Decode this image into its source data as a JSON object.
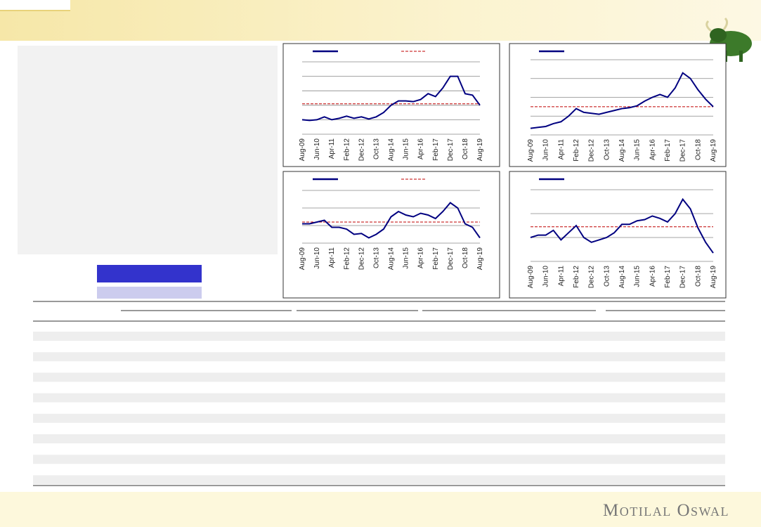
{
  "chart_data": [
    {
      "type": "line",
      "categories": [
        "Aug-09",
        null,
        "Jun-10",
        null,
        "Apr-11",
        null,
        "Feb-12",
        null,
        "Dec-12",
        null,
        "Oct-13",
        null,
        "Aug-14",
        null,
        "Jun-15",
        null,
        "Apr-16",
        null,
        "Feb-17",
        null,
        "Dec-17",
        null,
        "Oct-18",
        null,
        "Aug-19"
      ],
      "series": [
        {
          "color": "#000080",
          "values": [
            1.0,
            0.95,
            1.0,
            1.2,
            1.0,
            1.1,
            1.25,
            1.1,
            1.2,
            1.05,
            1.2,
            1.5,
            2.0,
            2.3,
            2.3,
            2.25,
            2.4,
            2.8,
            2.6,
            3.2,
            4.0,
            4.0,
            2.8,
            2.7,
            2.0
          ]
        }
      ],
      "reference": {
        "value": 2.1,
        "color": "#c00000"
      },
      "reference_in_legend": true,
      "ylim": [
        0,
        5
      ],
      "yticks": [
        1,
        2,
        3,
        4,
        5
      ],
      "grid": true
    },
    {
      "type": "line",
      "categories": [
        "Aug-09",
        null,
        "Jun-10",
        null,
        "Apr-11",
        null,
        "Feb-12",
        null,
        "Dec-12",
        null,
        "Oct-13",
        null,
        "Aug-14",
        null,
        "Jun-15",
        null,
        "Apr-16",
        null,
        "Feb-17",
        null,
        "Dec-17",
        null,
        "Oct-18",
        null,
        "Aug-19"
      ],
      "series": [
        {
          "color": "#000080",
          "values": [
            0.35,
            0.4,
            0.45,
            0.6,
            0.7,
            1.0,
            1.4,
            1.2,
            1.15,
            1.1,
            1.2,
            1.3,
            1.4,
            1.45,
            1.55,
            1.8,
            2.0,
            2.15,
            2.0,
            2.5,
            3.3,
            3.0,
            2.4,
            1.9,
            1.5
          ]
        }
      ],
      "reference": {
        "value": 1.5,
        "color": "#c00000"
      },
      "reference_in_legend": false,
      "ylim": [
        0,
        4
      ],
      "yticks": [
        1,
        2,
        3,
        4
      ],
      "grid": true
    },
    {
      "type": "line",
      "categories": [
        "Aug-09",
        null,
        "Jun-10",
        null,
        "Apr-11",
        null,
        "Feb-12",
        null,
        "Dec-12",
        null,
        "Oct-13",
        null,
        "Aug-14",
        null,
        "Jun-15",
        null,
        "Apr-16",
        null,
        "Feb-17",
        null,
        "Dec-17",
        null,
        "Oct-18",
        null,
        "Aug-19"
      ],
      "series": [
        {
          "color": "#000080",
          "values": [
            1.1,
            1.1,
            1.2,
            1.3,
            0.9,
            0.9,
            0.8,
            0.5,
            0.55,
            0.3,
            0.5,
            0.8,
            1.5,
            1.8,
            1.6,
            1.5,
            1.7,
            1.6,
            1.4,
            1.8,
            2.3,
            2.0,
            1.1,
            0.9,
            0.3
          ]
        }
      ],
      "reference": {
        "value": 1.2,
        "color": "#c00000"
      },
      "reference_in_legend": true,
      "ylim": [
        0,
        3
      ],
      "yticks": [
        1,
        2,
        3
      ],
      "grid": true
    },
    {
      "type": "line",
      "categories": [
        "Aug-09",
        null,
        "Jun-10",
        null,
        "Apr-11",
        null,
        "Feb-12",
        null,
        "Dec-12",
        null,
        "Oct-13",
        null,
        "Aug-14",
        null,
        "Jun-15",
        null,
        "Apr-16",
        null,
        "Feb-17",
        null,
        "Dec-17",
        null,
        "Oct-18",
        null,
        "Aug-19"
      ],
      "series": [
        {
          "color": "#000080",
          "values": [
            1.0,
            1.1,
            1.1,
            1.3,
            0.9,
            1.2,
            1.5,
            1.0,
            0.8,
            0.9,
            1.0,
            1.2,
            1.55,
            1.55,
            1.7,
            1.75,
            1.9,
            1.8,
            1.65,
            2.0,
            2.6,
            2.2,
            1.4,
            0.8,
            0.35
          ]
        }
      ],
      "reference": {
        "value": 1.45,
        "color": "#c00000"
      },
      "reference_in_legend": false,
      "ylim": [
        0,
        3
      ],
      "yticks": [
        1,
        2,
        3
      ],
      "grid": true
    }
  ],
  "footer": {
    "brand": "Motilal Oswal"
  }
}
